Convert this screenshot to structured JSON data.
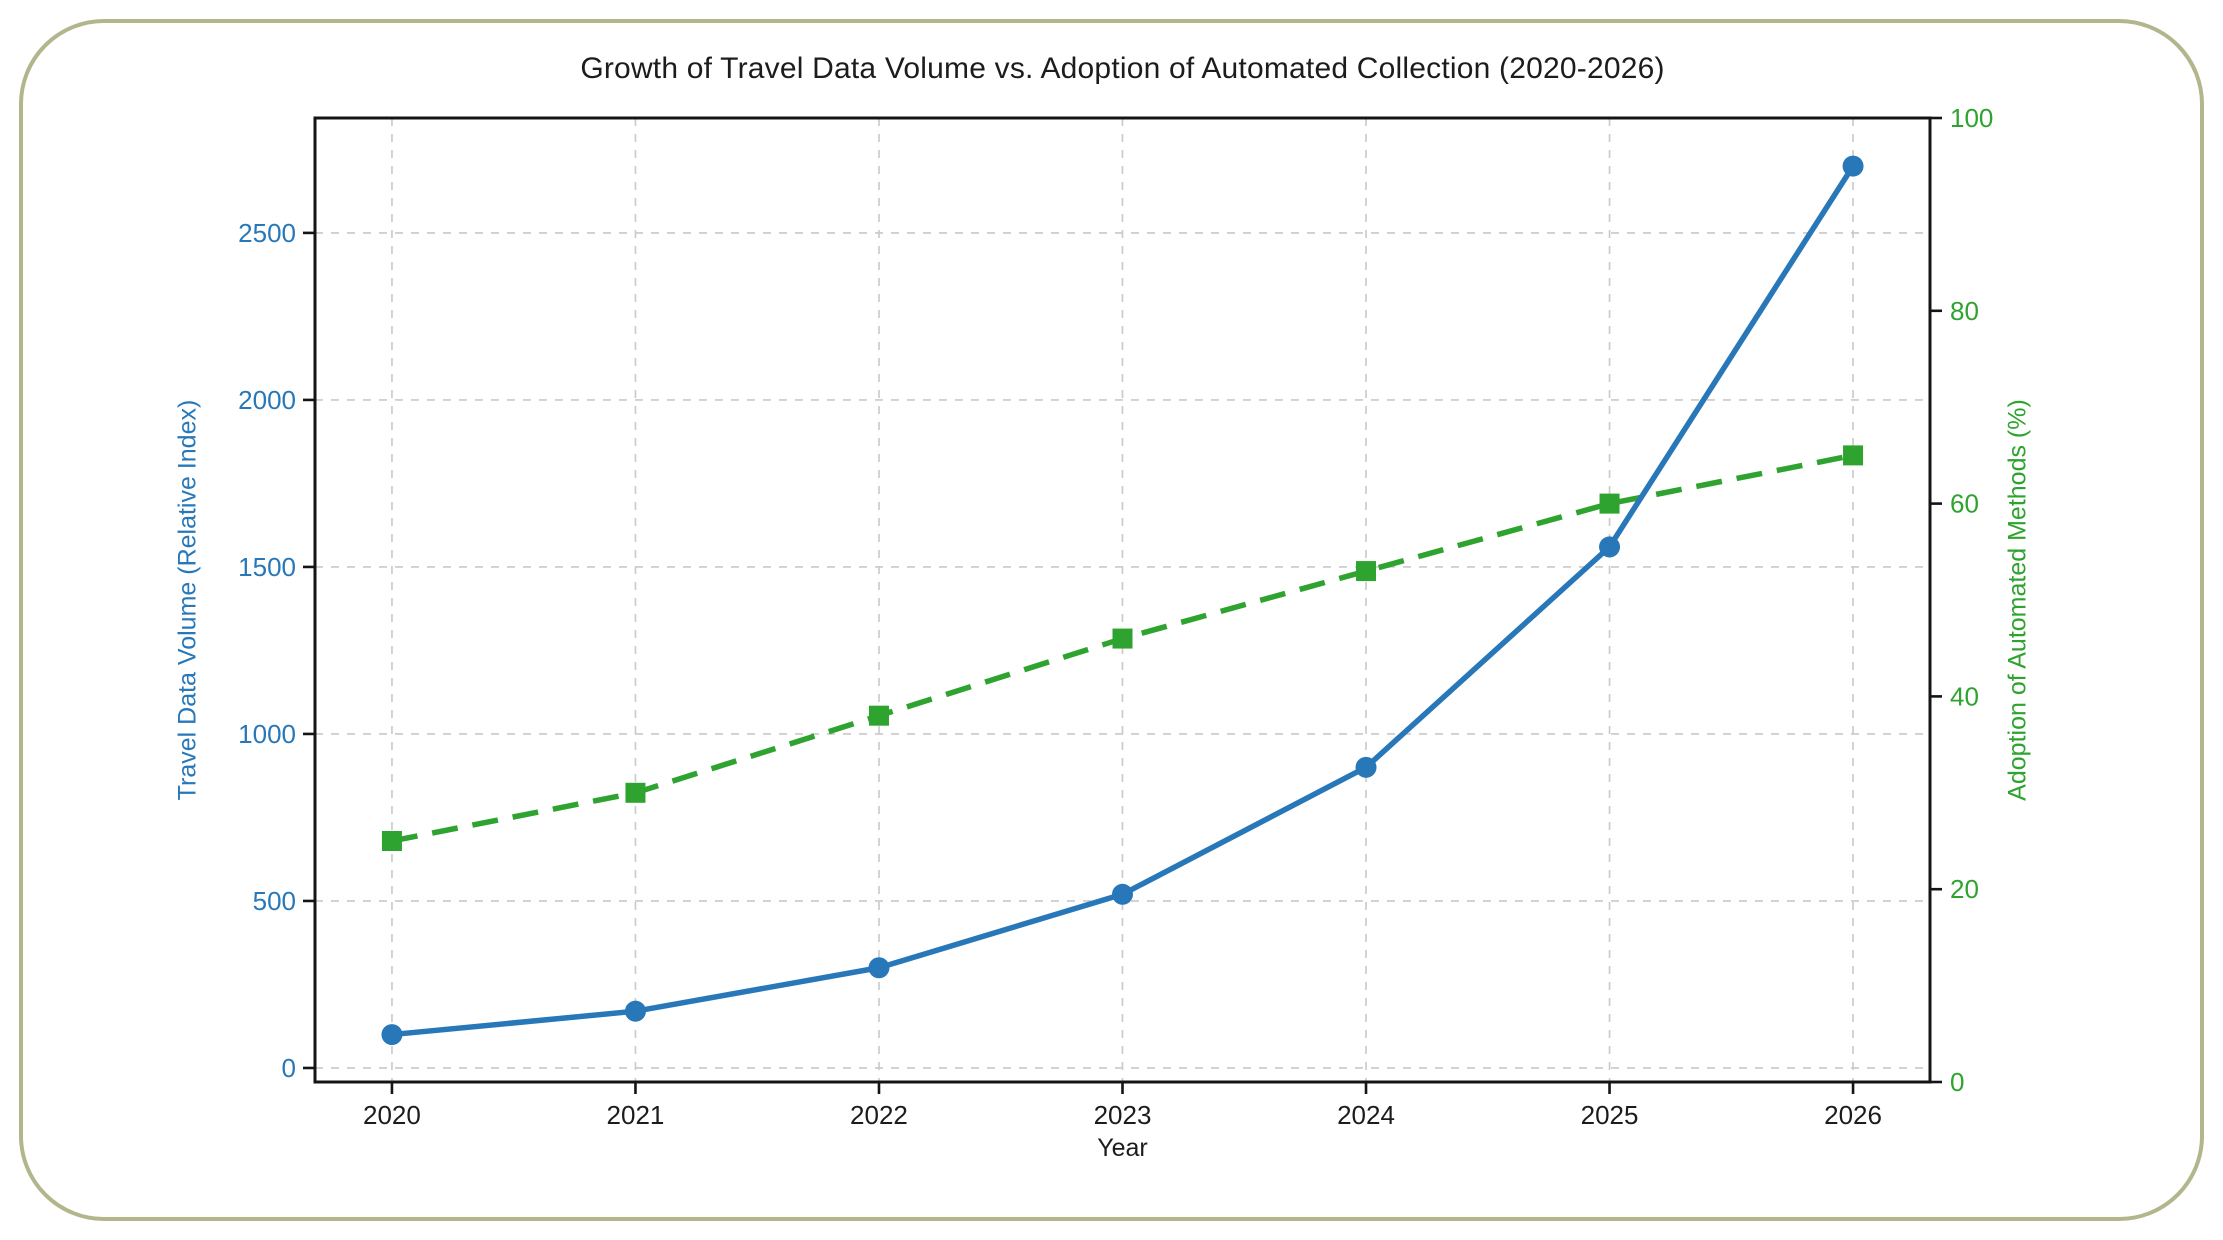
{
  "frame": {
    "border_color": "#b3b58c",
    "background_color": "#ffffff"
  },
  "chart_data": {
    "type": "line",
    "title": "Growth of Travel Data Volume vs. Adoption of Automated Collection (2020-2026)",
    "xlabel": "Year",
    "x": [
      2020,
      2021,
      2022,
      2023,
      2024,
      2025,
      2026
    ],
    "series": [
      {
        "name": "Adoption of Automated Methods",
        "axis": "right",
        "color": "#2fa32f",
        "line_style": "dashed",
        "marker": "square",
        "values": [
          25,
          30,
          38,
          46,
          53,
          60,
          65
        ]
      },
      {
        "name": "Travel Data Volume",
        "axis": "left",
        "color": "#2878b9",
        "line_style": "solid",
        "marker": "circle",
        "values": [
          100,
          170,
          300,
          520,
          900,
          1560,
          2700
        ]
      }
    ],
    "left_axis": {
      "label": "Travel Data Volume (Relative Index)",
      "color": "#2878b9",
      "ticks": [
        0,
        500,
        1000,
        1500,
        2000,
        2500
      ],
      "range": [
        -42,
        2844
      ]
    },
    "right_axis": {
      "label": "Adoption of Automated Methods (%)",
      "color": "#2fa32f",
      "ticks": [
        0,
        20,
        40,
        60,
        80,
        100
      ],
      "range": [
        0,
        100
      ]
    },
    "x_tick_labels": [
      "2020",
      "2021",
      "2022",
      "2023",
      "2024",
      "2025",
      "2026"
    ],
    "grid": true,
    "grid_color": "#c9c9c9",
    "spine_color": "#141414",
    "tick_label_color": "#1c1c1c",
    "legend": "none"
  }
}
